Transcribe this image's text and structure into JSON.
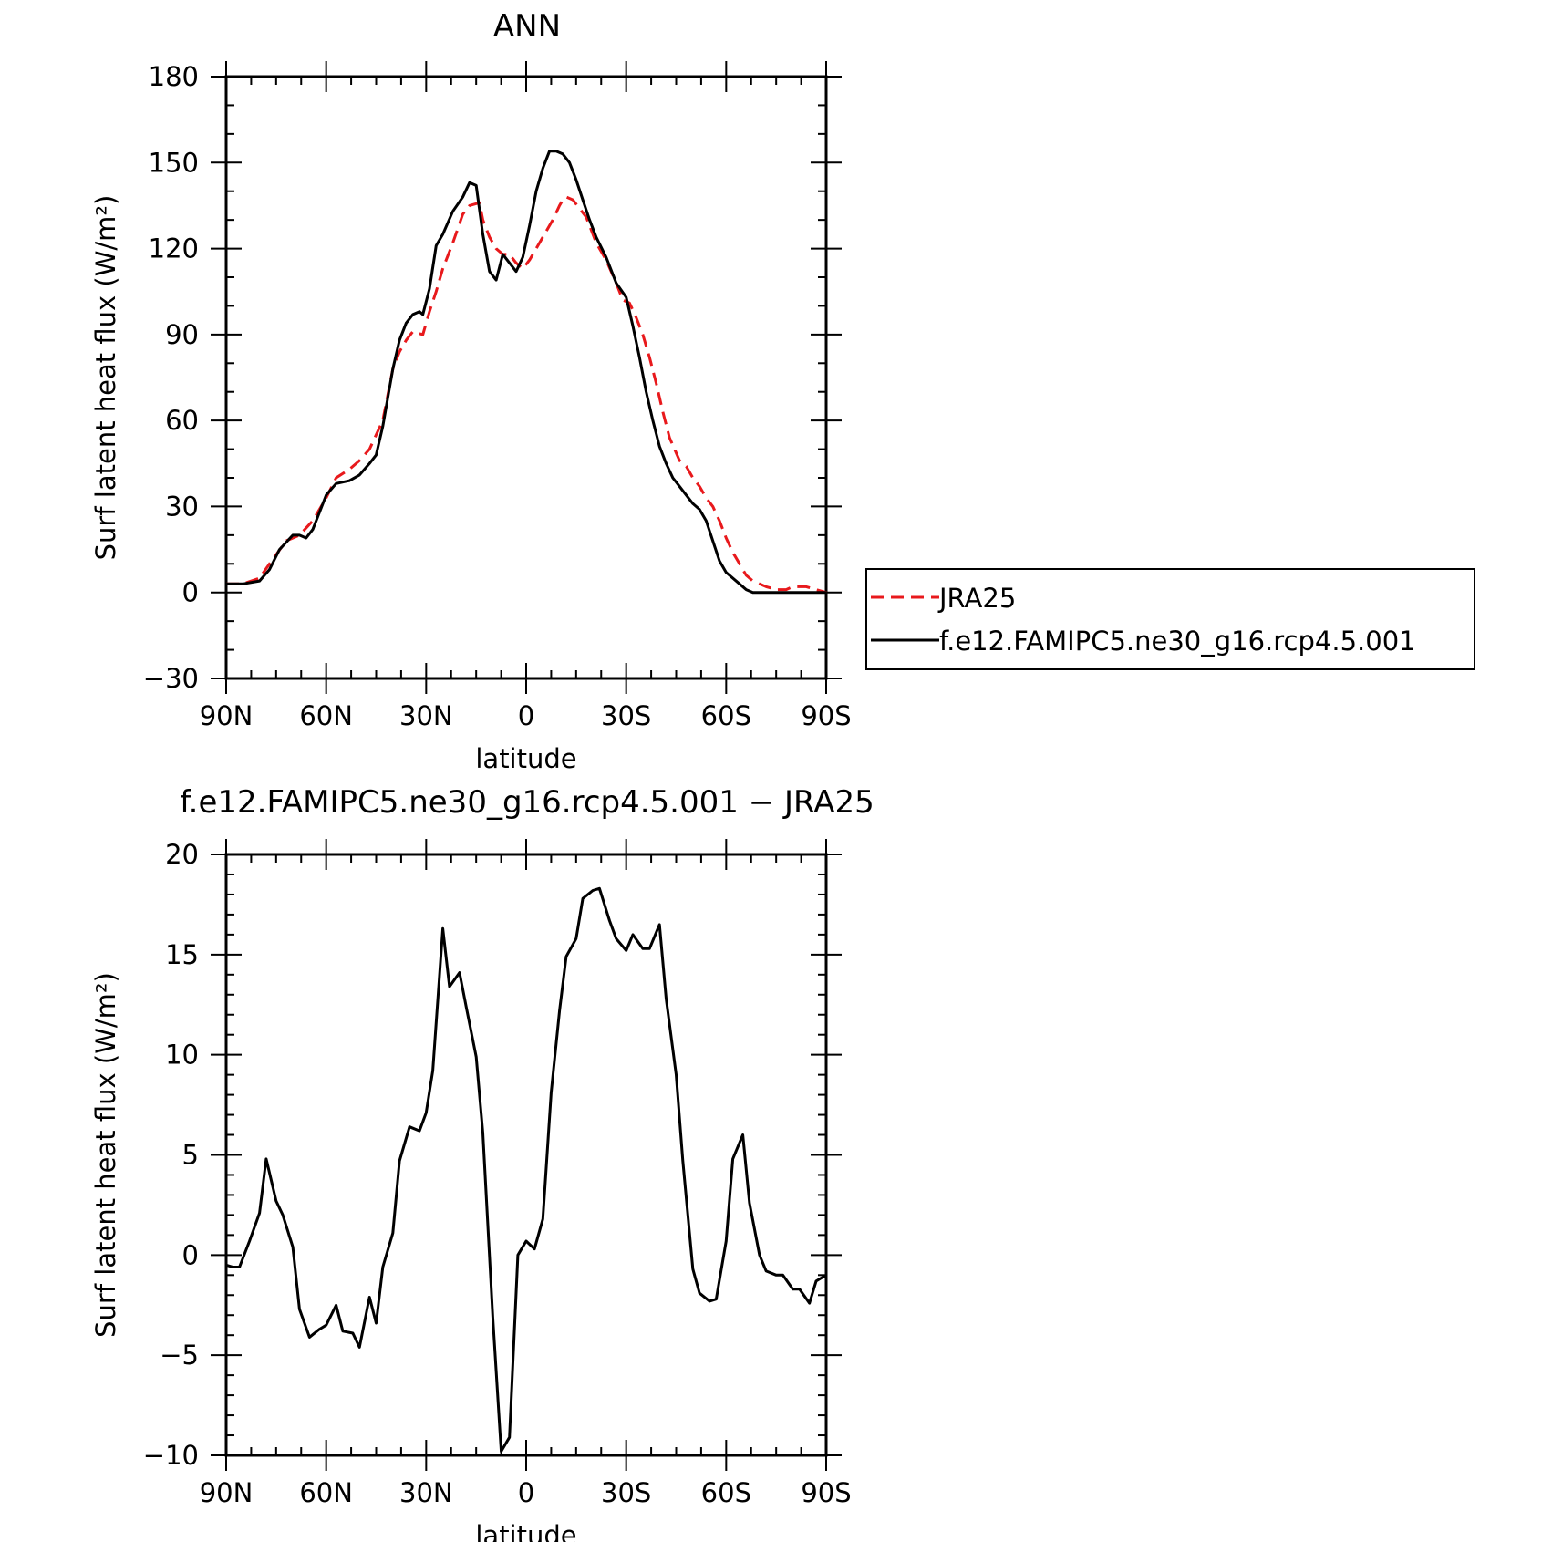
{
  "chart_data": [
    {
      "type": "line",
      "title": "ANN",
      "xlabel": "latitude",
      "ylabel": "Surf latent heat flux (W/m²)",
      "ylim": [
        -30,
        180
      ],
      "yticks": [
        -30,
        0,
        30,
        60,
        90,
        120,
        150,
        180
      ],
      "yticklabels": [
        "−30",
        "0",
        "30",
        "60",
        "90",
        "120",
        "150",
        "180"
      ],
      "xlim": [
        90,
        -90
      ],
      "xticks": [
        90,
        60,
        30,
        0,
        -30,
        -60,
        -90
      ],
      "xticklabels": [
        "90N",
        "60N",
        "30N",
        "0",
        "30S",
        "60S",
        "90S"
      ],
      "legend": "right",
      "grid": false,
      "series": [
        {
          "name": "JRA25",
          "color": "#e8191c",
          "dash": "dashed",
          "x": [
            90,
            85,
            80,
            77,
            72,
            68,
            64,
            60,
            57,
            53,
            50,
            47,
            43,
            40,
            38,
            36,
            34,
            31,
            29,
            27,
            25,
            22,
            19,
            17,
            14,
            13,
            11,
            9,
            7,
            5,
            3,
            1,
            -1,
            -3,
            -5,
            -8,
            -10,
            -11,
            -12,
            -14,
            -16,
            -18,
            -19,
            -21,
            -24,
            -27,
            -29,
            -31,
            -33,
            -35,
            -37,
            -39,
            -41,
            -43,
            -46,
            -48,
            -50,
            -52,
            -54,
            -56,
            -58,
            -60,
            -62,
            -64,
            -66,
            -68,
            -70,
            -72,
            -75,
            -78,
            -80,
            -82,
            -84,
            -87,
            -90
          ],
          "y": [
            3,
            3,
            5,
            10,
            18,
            20,
            25,
            33,
            40,
            43,
            46,
            50,
            60,
            78,
            84,
            88,
            91,
            90,
            98,
            105,
            113,
            122,
            132,
            135,
            136,
            130,
            124,
            120,
            118,
            118,
            115,
            113,
            116,
            120,
            124,
            130,
            135,
            137,
            138,
            137,
            134,
            131,
            128,
            122,
            116,
            108,
            102,
            101,
            96,
            90,
            82,
            73,
            63,
            54,
            46,
            44,
            40,
            37,
            33,
            30,
            25,
            19,
            14,
            10,
            6,
            4,
            3,
            2,
            1,
            1,
            2,
            2,
            2,
            1,
            0
          ]
        },
        {
          "name": "f.e12.FAMIPC5.ne30_g16.rcp4.5.001",
          "color": "#000000",
          "dash": "solid",
          "x": [
            90,
            85,
            80,
            77,
            74,
            70,
            68,
            66,
            64,
            62,
            60,
            57,
            53,
            50,
            47,
            45,
            43,
            40,
            38,
            36,
            34,
            32,
            31,
            29,
            27,
            25,
            22,
            19,
            17,
            15,
            13,
            11,
            9,
            7,
            5,
            3,
            1,
            -1,
            -3,
            -5,
            -7,
            -9,
            -11,
            -13,
            -15,
            -17,
            -19,
            -21,
            -24,
            -27,
            -30,
            -32,
            -34,
            -36,
            -38,
            -40,
            -42,
            -44,
            -46,
            -48,
            -50,
            -52,
            -54,
            -56,
            -58,
            -60,
            -62,
            -64,
            -66,
            -68,
            -70,
            -72,
            -75,
            -78,
            -80,
            -83,
            -85,
            -87,
            -90
          ],
          "y": [
            3,
            3,
            4,
            8,
            15,
            20,
            20,
            19,
            22,
            28,
            34,
            38,
            39,
            41,
            45,
            48,
            58,
            78,
            88,
            94,
            97,
            98,
            97,
            106,
            121,
            125,
            133,
            138,
            143,
            142,
            125,
            112,
            109,
            118,
            115,
            112,
            117,
            128,
            140,
            148,
            154,
            154,
            153,
            150,
            144,
            137,
            130,
            124,
            117,
            108,
            103,
            93,
            82,
            70,
            60,
            51,
            45,
            40,
            37,
            34,
            31,
            29,
            25,
            18,
            11,
            7,
            5,
            3,
            1,
            0,
            0,
            0,
            0,
            0,
            0,
            0,
            0,
            0,
            0
          ]
        }
      ]
    },
    {
      "type": "line",
      "title": "f.e12.FAMIPC5.ne30_g16.rcp4.5.001 − JRA25",
      "xlabel": "latitude",
      "ylabel": "Surf latent heat flux (W/m²)",
      "ylim": [
        -10,
        20
      ],
      "yticks": [
        -10,
        -5,
        0,
        5,
        10,
        15,
        20
      ],
      "yticklabels": [
        "−10",
        "−5",
        "0",
        "5",
        "10",
        "15",
        "20"
      ],
      "xlim": [
        90,
        -90
      ],
      "xticks": [
        90,
        60,
        30,
        0,
        -30,
        -60,
        -90
      ],
      "xticklabels": [
        "90N",
        "60N",
        "30N",
        "0",
        "30S",
        "60S",
        "90S"
      ],
      "grid": false,
      "series": [
        {
          "color": "#000000",
          "dash": "solid",
          "x": [
            90,
            88,
            86,
            83,
            80,
            78,
            75,
            73,
            70,
            68,
            65,
            62,
            60,
            57,
            55,
            52,
            50,
            47,
            45,
            43,
            40,
            38,
            35,
            32,
            30,
            28,
            25,
            23,
            20,
            18,
            15,
            13,
            10,
            7.5,
            5,
            2.5,
            0,
            -2.5,
            -5,
            -7.5,
            -10,
            -12,
            -15,
            -17,
            -20,
            -22,
            -25,
            -27,
            -30,
            -32,
            -35,
            -37,
            -40,
            -42,
            -45,
            -47,
            -50,
            -52,
            -55,
            -57,
            -60,
            -62,
            -65,
            -67,
            -70,
            -72,
            -75,
            -77,
            -80,
            -82,
            -85,
            -87,
            -90
          ],
          "y": [
            -0.5,
            -0.6,
            -0.6,
            0.7,
            2.1,
            4.8,
            2.7,
            2.0,
            0.4,
            -2.7,
            -4.1,
            -3.7,
            -3.5,
            -2.5,
            -3.8,
            -3.9,
            -4.6,
            -2.1,
            -3.4,
            -0.6,
            1.1,
            4.7,
            6.4,
            6.2,
            7.1,
            9.2,
            16.3,
            13.4,
            14.1,
            12.4,
            9.9,
            6.1,
            -3.1,
            -9.8,
            -9.1,
            0.0,
            0.7,
            0.3,
            1.8,
            8.1,
            12.2,
            14.9,
            15.8,
            17.8,
            18.2,
            18.3,
            16.7,
            15.8,
            15.2,
            16.0,
            15.3,
            15.3,
            16.5,
            12.8,
            9.0,
            4.7,
            -0.7,
            -1.9,
            -2.3,
            -2.2,
            0.7,
            4.8,
            6.0,
            2.6,
            0.0,
            -0.8,
            -1.0,
            -1.0,
            -1.7,
            -1.7,
            -2.4,
            -1.3,
            -1.0
          ]
        }
      ]
    }
  ]
}
